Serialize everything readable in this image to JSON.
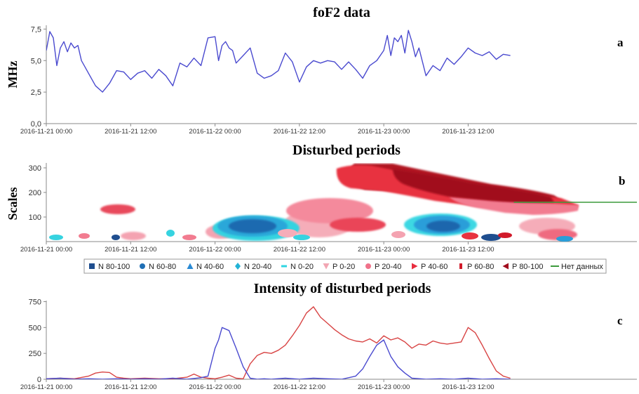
{
  "chart_data": [
    {
      "panel": "a",
      "type": "line",
      "title": "foF2 data",
      "ylabel": "MHz",
      "panel_label": "a",
      "ylim": [
        0,
        7.8
      ],
      "yticks": [
        "0,0",
        "2,5",
        "5,0",
        "7,5"
      ],
      "ytick_values": [
        0,
        2.5,
        5.0,
        7.5
      ],
      "xlim_hours": [
        0,
        84
      ],
      "xticks": [
        "2016-11-21 00:00",
        "2016-11-21 12:00",
        "2016-11-22 00:00",
        "2016-11-22 12:00",
        "2016-11-23 00:00",
        "2016-11-23 12:00"
      ],
      "xtick_hours": [
        0,
        12,
        24,
        36,
        48,
        60
      ],
      "color": "#4a4acf",
      "series": [
        {
          "x": [
            0,
            0.5,
            1,
            1.5,
            2,
            2.5,
            3,
            3.5,
            4,
            4.5,
            5,
            5.5,
            6,
            7,
            8,
            9,
            10,
            11,
            12,
            13,
            14,
            15,
            16,
            17,
            18,
            19,
            20,
            21,
            22,
            23,
            24,
            24.5,
            25,
            25.5,
            26,
            26.5,
            27,
            28,
            29,
            30,
            31,
            32,
            33,
            34,
            35,
            36,
            37,
            38,
            39,
            40,
            41,
            42,
            43,
            44,
            45,
            46,
            47,
            48,
            48.5,
            49,
            49.5,
            50,
            50.5,
            51,
            51.5,
            52,
            52.5,
            53,
            54,
            55,
            56,
            57,
            58,
            59,
            60,
            61,
            62,
            63,
            64,
            65,
            66
          ],
          "y": [
            5.8,
            7.3,
            6.8,
            4.6,
            6.0,
            6.5,
            5.7,
            6.4,
            6.0,
            6.2,
            5.0,
            4.5,
            4.0,
            3.0,
            2.5,
            3.2,
            4.2,
            4.1,
            3.5,
            4.0,
            4.2,
            3.6,
            4.3,
            3.8,
            3.0,
            4.8,
            4.5,
            5.2,
            4.6,
            6.8,
            6.9,
            5.0,
            6.2,
            6.5,
            6.0,
            5.8,
            4.8,
            5.4,
            6.0,
            4.0,
            3.6,
            3.8,
            4.2,
            5.6,
            4.9,
            3.3,
            4.5,
            5.0,
            4.8,
            5.0,
            4.9,
            4.3,
            4.9,
            4.3,
            3.6,
            4.6,
            5.0,
            5.8,
            7.0,
            5.4,
            6.8,
            6.5,
            7.0,
            5.6,
            7.4,
            6.5,
            5.3,
            6.0,
            3.8,
            4.6,
            4.2,
            5.2,
            4.7,
            5.3,
            6.0,
            5.6,
            5.4,
            5.7,
            5.1,
            5.5,
            5.4
          ]
        }
      ]
    },
    {
      "panel": "b",
      "type": "heatmap",
      "title": "Disturbed periods",
      "ylabel": "Scales",
      "panel_label": "b",
      "ylim": [
        0,
        320
      ],
      "yticks": [
        "100",
        "200",
        "300"
      ],
      "ytick_values": [
        100,
        200,
        300
      ],
      "xlim_hours": [
        0,
        84
      ],
      "xticks": [
        "2016-11-21 00:00",
        "2016-11-21 12:00",
        "2016-11-22 00:00",
        "2016-11-22 12:00",
        "2016-11-23 00:00",
        "2016-11-23 12:00"
      ],
      "xtick_hours": [
        0,
        12,
        24,
        36,
        48,
        60
      ],
      "no_data": {
        "x0": 66.5,
        "x1": 84,
        "y": 160,
        "color": "#3c9a3c"
      },
      "legend": [
        {
          "label": "N 80-100",
          "marker": "square",
          "color": "#1f4e8f"
        },
        {
          "label": "N 60-80",
          "marker": "circle",
          "color": "#1f6fb5"
        },
        {
          "label": "N 40-60",
          "marker": "triangle-up",
          "color": "#2a8ad4"
        },
        {
          "label": "N 20-40",
          "marker": "diamond",
          "color": "#22b3d6"
        },
        {
          "label": "N 0-20",
          "marker": "dash",
          "color": "#2fd6e2"
        },
        {
          "label": "P 0-20",
          "marker": "triangle-down",
          "color": "#f2a6b3"
        },
        {
          "label": "P 20-40",
          "marker": "circle",
          "color": "#f0728a"
        },
        {
          "label": "P 40-60",
          "marker": "triangle-right",
          "color": "#e82d3f"
        },
        {
          "label": "P 60-80",
          "marker": "bar",
          "color": "#d11a2a"
        },
        {
          "label": "P 80-100",
          "marker": "triangle-left",
          "color": "#a10d1e"
        },
        {
          "label": "Нет данных",
          "marker": "line",
          "color": "#3c9a3c"
        }
      ]
    },
    {
      "panel": "c",
      "type": "line",
      "title": "Intensity of disturbed periods",
      "panel_label": "c",
      "ylim": [
        0,
        760
      ],
      "yticks": [
        "0",
        "250",
        "500",
        "750"
      ],
      "ytick_values": [
        0,
        250,
        500,
        750
      ],
      "xlim_hours": [
        0,
        84
      ],
      "xticks": [
        "2016-11-21 00:00",
        "2016-11-21 12:00",
        "2016-11-22 00:00",
        "2016-11-22 12:00",
        "2016-11-23 00:00",
        "2016-11-23 12:00"
      ],
      "xtick_hours": [
        0,
        12,
        24,
        36,
        48,
        60
      ],
      "series": [
        {
          "color": "#d84444",
          "x": [
            0,
            2,
            4,
            6,
            7,
            8,
            9,
            10,
            11,
            12,
            14,
            16,
            18,
            20,
            21,
            22,
            23,
            24,
            25,
            26,
            27,
            28,
            29,
            30,
            31,
            32,
            33,
            34,
            35,
            36,
            37,
            38,
            39,
            40,
            41,
            42,
            43,
            44,
            45,
            46,
            47,
            48,
            49,
            50,
            51,
            52,
            53,
            54,
            55,
            56,
            57,
            58,
            59,
            60,
            61,
            62,
            63,
            64,
            65,
            66
          ],
          "y": [
            5,
            10,
            5,
            30,
            60,
            70,
            65,
            20,
            10,
            5,
            10,
            5,
            5,
            20,
            50,
            20,
            10,
            5,
            20,
            40,
            10,
            5,
            150,
            230,
            260,
            250,
            280,
            330,
            420,
            520,
            640,
            700,
            600,
            540,
            480,
            430,
            390,
            370,
            360,
            390,
            350,
            420,
            380,
            400,
            360,
            300,
            340,
            330,
            370,
            350,
            340,
            350,
            360,
            500,
            450,
            330,
            200,
            80,
            30,
            10
          ]
        },
        {
          "color": "#4a4acf",
          "x": [
            0,
            2,
            4,
            6,
            8,
            10,
            12,
            14,
            16,
            18,
            20,
            22,
            23,
            24,
            24.5,
            25,
            26,
            27,
            28,
            29,
            30,
            31,
            32,
            34,
            36,
            38,
            40,
            42,
            44,
            45,
            46,
            47,
            48,
            49,
            50,
            51,
            52,
            54,
            56,
            58,
            60,
            62,
            64,
            66
          ],
          "y": [
            5,
            10,
            0,
            5,
            0,
            5,
            0,
            5,
            0,
            10,
            0,
            15,
            30,
            300,
            380,
            500,
            470,
            300,
            120,
            10,
            0,
            5,
            0,
            10,
            0,
            10,
            5,
            0,
            30,
            100,
            220,
            330,
            380,
            220,
            120,
            60,
            10,
            0,
            5,
            0,
            10,
            0,
            5,
            0
          ]
        }
      ]
    }
  ]
}
